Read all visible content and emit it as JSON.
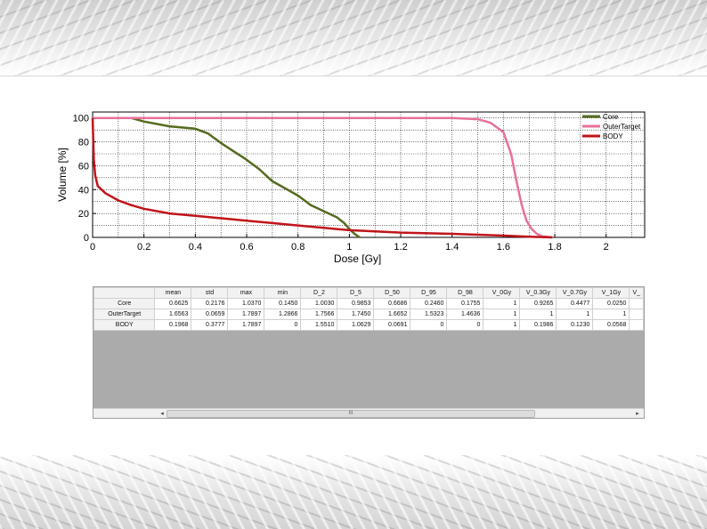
{
  "chart_data": {
    "type": "line",
    "xlabel": "Dose [Gy]",
    "ylabel": "Volume [%]",
    "xlim": [
      0,
      2.15
    ],
    "ylim": [
      0,
      105
    ],
    "xticks": [
      0,
      0.2,
      0.4,
      0.6,
      0.8,
      1,
      1.2,
      1.4,
      1.6,
      1.8,
      2
    ],
    "xtick_labels": [
      "0",
      "0.2",
      "0.4",
      "0.6",
      "0.8",
      "1",
      "1.2",
      "1.4",
      "1.6",
      "1.8",
      "2"
    ],
    "yticks": [
      0,
      20,
      40,
      60,
      80,
      100
    ],
    "ytick_labels": [
      "0",
      "20",
      "40",
      "60",
      "80",
      "100"
    ],
    "grid": true,
    "legend": "top-right",
    "series": [
      {
        "name": "Core",
        "color": "#556b1f",
        "x": [
          0,
          0.15,
          0.2,
          0.3,
          0.4,
          0.45,
          0.5,
          0.55,
          0.6,
          0.65,
          0.7,
          0.75,
          0.8,
          0.85,
          0.9,
          0.95,
          0.98,
          1.0,
          1.02,
          1.04
        ],
        "y": [
          100,
          100,
          97,
          93,
          91,
          87,
          79,
          72,
          65,
          57,
          47,
          41,
          35,
          27,
          22,
          17,
          12,
          7,
          3,
          0
        ]
      },
      {
        "name": "OuterTarget",
        "color": "#e8709a",
        "x": [
          0,
          1.28,
          1.4,
          1.5,
          1.55,
          1.6,
          1.63,
          1.65,
          1.67,
          1.69,
          1.71,
          1.73,
          1.75,
          1.79
        ],
        "y": [
          100,
          100,
          100,
          99,
          96,
          88,
          70,
          48,
          28,
          14,
          7,
          3,
          1,
          0
        ]
      },
      {
        "name": "BODY",
        "color": "#c0141a",
        "x": [
          0,
          0.005,
          0.01,
          0.02,
          0.05,
          0.1,
          0.15,
          0.2,
          0.3,
          0.4,
          0.5,
          0.6,
          0.7,
          0.8,
          0.9,
          1.0,
          1.2,
          1.4,
          1.6,
          1.7,
          1.79
        ],
        "y": [
          100,
          65,
          52,
          43,
          37,
          31,
          27,
          24,
          20,
          18,
          16,
          14,
          12,
          10,
          8,
          6,
          4,
          3,
          1.5,
          0.5,
          0
        ]
      }
    ]
  },
  "table": {
    "headers": [
      "mean",
      "std",
      "max",
      "min",
      "D_2",
      "D_5",
      "D_50",
      "D_95",
      "D_98",
      "V_0Gy",
      "V_0.3Gy",
      "V_0.7Gy",
      "V_1Gy",
      "V_"
    ],
    "rows": [
      {
        "label": "Core",
        "cells": [
          "0.6625",
          "0.2176",
          "1.0370",
          "0.1450",
          "1.0030",
          "0.9853",
          "0.6686",
          "0.2460",
          "0.1755",
          "1",
          "0.9265",
          "0.4477",
          "0.0250",
          ""
        ]
      },
      {
        "label": "OuterTarget",
        "cells": [
          "1.6563",
          "0.0659",
          "1.7897",
          "1.2866",
          "1.7566",
          "1.7450",
          "1.6652",
          "1.5323",
          "1.4636",
          "1",
          "1",
          "1",
          "1",
          ""
        ]
      },
      {
        "label": "BODY",
        "cells": [
          "0.1968",
          "0.3777",
          "1.7897",
          "0",
          "1.5510",
          "1.0629",
          "0.0691",
          "0",
          "0",
          "1",
          "0.1986",
          "0.1230",
          "0.0568",
          ""
        ]
      }
    ]
  },
  "scrollbar": {
    "left_arrow": "◂",
    "right_arrow": "▸",
    "thumb_grip": "III"
  }
}
